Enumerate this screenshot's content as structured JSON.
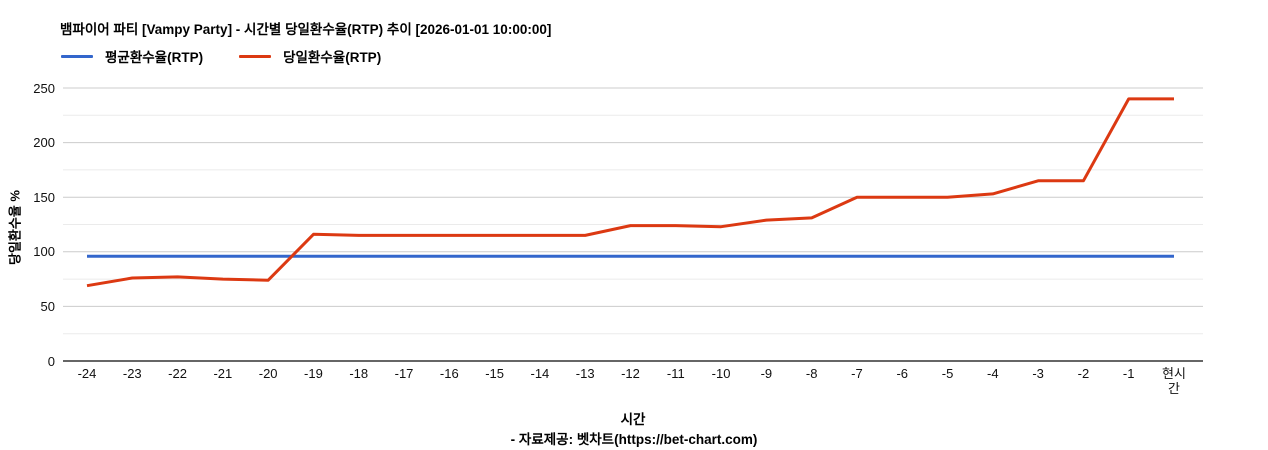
{
  "title": "뱀파이어 파티 [Vampy Party] - 시간별 당일환수율(RTP) 추이 [2026-01-01 10:00:00]",
  "footer": "- 자료제공: 벳차트(https://bet-chart.com)",
  "colors": {
    "average_line": "#3366cc",
    "daily_line": "#dc3912",
    "major_gridline": "#cccccc",
    "minor_gridline": "#ebebeb",
    "baseline": "#333333"
  },
  "chart_data": {
    "type": "line",
    "title": "뱀파이어 파티 [Vampy Party] - 시간별 당일환수율(RTP) 추이 [2026-01-01 10:00:00]",
    "xlabel": "시간",
    "ylabel": "당일환수율 %",
    "ylim": [
      0,
      250
    ],
    "yticks": [
      0,
      50,
      100,
      150,
      200,
      250
    ],
    "minor_ygrid": [
      25,
      75,
      125,
      175,
      225
    ],
    "grid": "on",
    "legend_position": "top-left",
    "categories": [
      "-24",
      "-23",
      "-22",
      "-21",
      "-20",
      "-19",
      "-18",
      "-17",
      "-16",
      "-15",
      "-14",
      "-13",
      "-12",
      "-11",
      "-10",
      "-9",
      "-8",
      "-7",
      "-6",
      "-5",
      "-4",
      "-3",
      "-2",
      "-1",
      "현시간"
    ],
    "series": [
      {
        "name": "평균환수율(RTP)",
        "color": "#3366cc",
        "values": [
          96,
          96,
          96,
          96,
          96,
          96,
          96,
          96,
          96,
          96,
          96,
          96,
          96,
          96,
          96,
          96,
          96,
          96,
          96,
          96,
          96,
          96,
          96,
          96,
          96
        ]
      },
      {
        "name": "당일환수율(RTP)",
        "color": "#dc3912",
        "values": [
          69,
          76,
          77,
          75,
          74,
          116,
          115,
          115,
          115,
          115,
          115,
          115,
          124,
          124,
          123,
          129,
          131,
          150,
          150,
          150,
          153,
          165,
          165,
          240,
          240
        ]
      }
    ]
  },
  "legend": [
    {
      "label": "평균환수율(RTP)",
      "color": "#3366cc"
    },
    {
      "label": "당일환수율(RTP)",
      "color": "#dc3912"
    }
  ]
}
